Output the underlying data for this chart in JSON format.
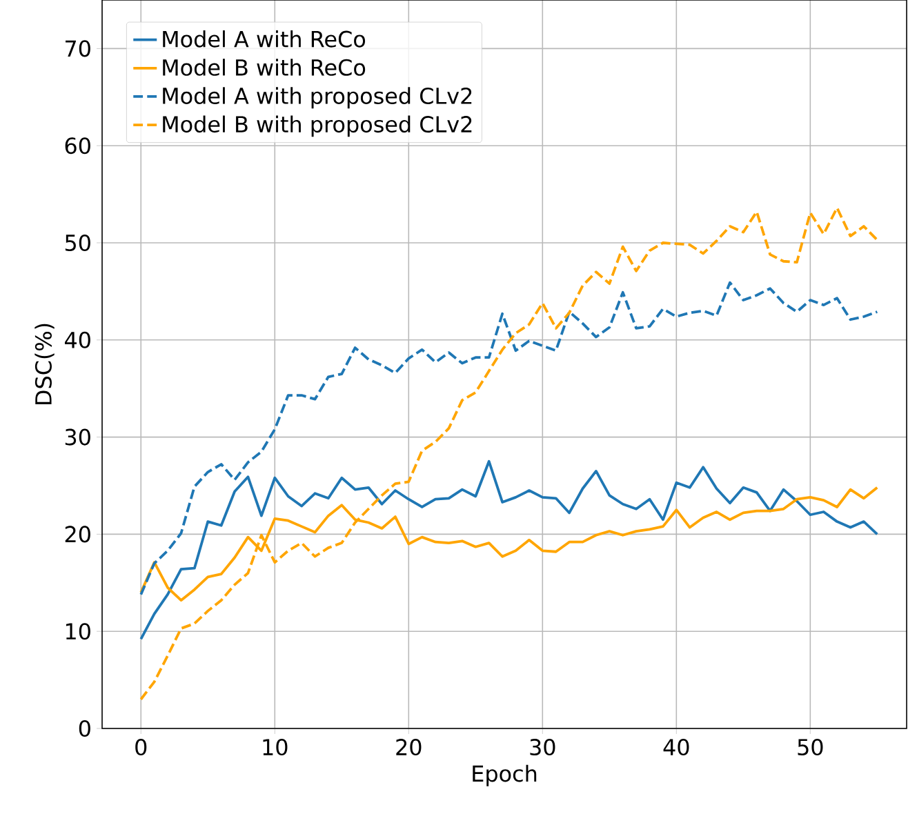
{
  "chart_data": {
    "type": "line",
    "xlabel": "Epoch",
    "ylabel": "DSC(%)",
    "x": [
      0,
      1,
      2,
      3,
      4,
      5,
      6,
      7,
      8,
      9,
      10,
      11,
      12,
      13,
      14,
      15,
      16,
      17,
      18,
      19,
      20,
      21,
      22,
      23,
      24,
      25,
      26,
      27,
      28,
      29,
      30,
      31,
      32,
      33,
      34,
      35,
      36,
      37,
      38,
      39,
      40,
      41,
      42,
      43,
      44,
      45,
      46,
      47,
      48,
      49,
      50,
      51,
      52,
      53,
      54,
      55
    ],
    "xlim": [
      -2.9,
      57.2
    ],
    "xticks": [
      0,
      10,
      20,
      30,
      40,
      50
    ],
    "ylim": [
      0,
      75
    ],
    "yticks": [
      0,
      10,
      20,
      30,
      40,
      50,
      60,
      70
    ],
    "grid": true,
    "legend": "top left",
    "marker": "none",
    "series": [
      {
        "name": "Model A with ReCo",
        "color": "#1f77b4",
        "line_style": "solid",
        "values": [
          9.2,
          11.8,
          13.8,
          16.4,
          16.5,
          21.3,
          20.9,
          24.4,
          25.9,
          21.9,
          25.8,
          23.9,
          22.9,
          24.2,
          23.7,
          25.8,
          24.6,
          24.8,
          23.1,
          24.5,
          23.6,
          22.8,
          23.6,
          23.7,
          24.6,
          23.9,
          27.5,
          23.3,
          23.8,
          24.5,
          23.8,
          23.7,
          22.2,
          24.7,
          26.5,
          24.0,
          23.1,
          22.6,
          23.6,
          21.5,
          25.3,
          24.8,
          26.9,
          24.7,
          23.2,
          24.8,
          24.3,
          22.4,
          24.6,
          23.4,
          22.0,
          22.3,
          21.3,
          20.7,
          21.3,
          20.0
        ]
      },
      {
        "name": "Model B with ReCo",
        "color": "#ffa500",
        "line_style": "solid",
        "values": [
          14.0,
          17.1,
          14.5,
          13.2,
          14.3,
          15.6,
          15.9,
          17.6,
          19.7,
          18.3,
          21.6,
          21.4,
          20.8,
          20.2,
          21.9,
          23.0,
          21.5,
          21.2,
          20.6,
          21.8,
          19.0,
          19.7,
          19.2,
          19.1,
          19.3,
          18.7,
          19.1,
          17.7,
          18.3,
          19.4,
          18.3,
          18.2,
          19.2,
          19.2,
          19.9,
          20.3,
          19.9,
          20.3,
          20.5,
          20.8,
          22.5,
          20.7,
          21.7,
          22.3,
          21.5,
          22.2,
          22.4,
          22.4,
          22.6,
          23.6,
          23.8,
          23.5,
          22.8,
          24.6,
          23.7,
          24.8
        ]
      },
      {
        "name": "Model A with proposed CLv2",
        "color": "#1f77b4",
        "line_style": "dashed",
        "values": [
          13.8,
          17.0,
          18.3,
          20.1,
          24.9,
          26.4,
          27.2,
          25.6,
          27.4,
          28.5,
          30.8,
          34.3,
          34.3,
          33.9,
          36.2,
          36.5,
          39.2,
          38.0,
          37.4,
          36.6,
          38.1,
          39.0,
          37.7,
          38.7,
          37.6,
          38.2,
          38.2,
          42.7,
          38.9,
          39.9,
          39.4,
          38.9,
          42.9,
          41.7,
          40.3,
          41.3,
          44.9,
          41.2,
          41.4,
          43.2,
          42.4,
          42.8,
          43.0,
          42.5,
          45.9,
          44.1,
          44.6,
          45.3,
          43.8,
          42.9,
          44.1,
          43.6,
          44.3,
          42.1,
          42.4,
          42.9
        ]
      },
      {
        "name": "Model B with proposed CLv2",
        "color": "#ffa500",
        "line_style": "dashed",
        "values": [
          3.0,
          4.8,
          7.5,
          10.3,
          10.8,
          12.1,
          13.2,
          14.8,
          16.0,
          19.9,
          17.1,
          18.3,
          19.1,
          17.7,
          18.6,
          19.1,
          21.2,
          22.6,
          24.0,
          25.2,
          25.4,
          28.6,
          29.5,
          30.9,
          33.8,
          34.6,
          36.8,
          39.0,
          40.7,
          41.6,
          43.8,
          41.2,
          42.8,
          45.6,
          47.0,
          45.8,
          49.6,
          47.1,
          49.2,
          50.0,
          49.9,
          49.8,
          48.9,
          50.2,
          51.7,
          51.1,
          53.2,
          48.8,
          48.1,
          48.0,
          53.1,
          50.9,
          53.6,
          50.7,
          51.7,
          50.3
        ]
      }
    ]
  }
}
